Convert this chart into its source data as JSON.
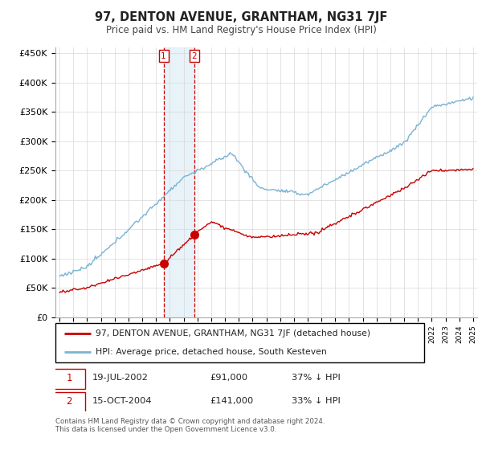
{
  "title": "97, DENTON AVENUE, GRANTHAM, NG31 7JF",
  "subtitle": "Price paid vs. HM Land Registry's House Price Index (HPI)",
  "hpi_label": "HPI: Average price, detached house, South Kesteven",
  "property_label": "97, DENTON AVENUE, GRANTHAM, NG31 7JF (detached house)",
  "hpi_color": "#7ab3d4",
  "property_color": "#cc0000",
  "sale1_date": "19-JUL-2002",
  "sale1_price": "£91,000",
  "sale1_hpi": "37% ↓ HPI",
  "sale2_date": "15-OCT-2004",
  "sale2_price": "£141,000",
  "sale2_hpi": "33% ↓ HPI",
  "ylim": [
    0,
    460000
  ],
  "yticks": [
    0,
    50000,
    100000,
    150000,
    200000,
    250000,
    300000,
    350000,
    400000,
    450000
  ],
  "footer": "Contains HM Land Registry data © Crown copyright and database right 2024.\nThis data is licensed under the Open Government Licence v3.0.",
  "background_color": "#ffffff",
  "grid_color": "#d8d8d8"
}
